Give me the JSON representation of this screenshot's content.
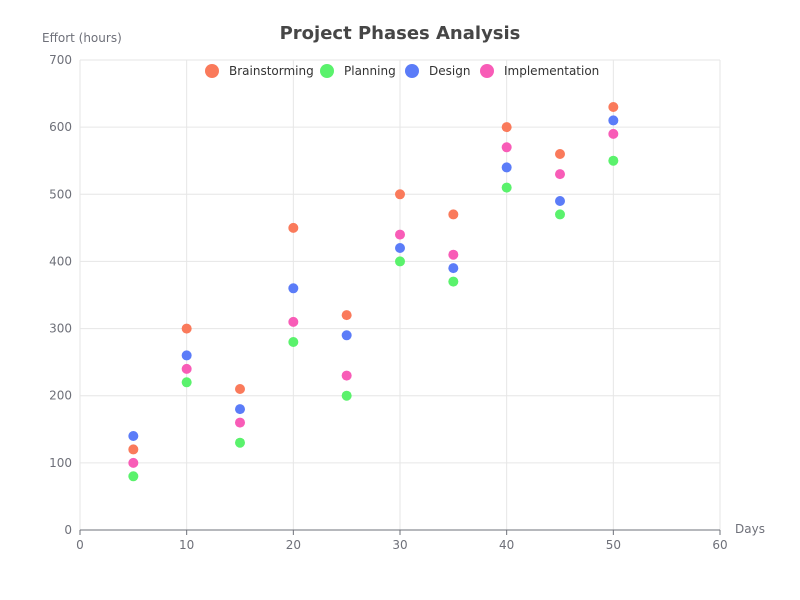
{
  "chart_data": {
    "type": "scatter",
    "title": "Project Phases Analysis",
    "xlabel": "Days",
    "ylabel": "Effort (hours)",
    "xlim": [
      0,
      60
    ],
    "ylim": [
      0,
      700
    ],
    "x_ticks": [
      0,
      10,
      20,
      30,
      40,
      50,
      60
    ],
    "y_ticks": [
      0,
      100,
      200,
      300,
      400,
      500,
      600,
      700
    ],
    "grid": true,
    "legend_position": "top-center",
    "series": [
      {
        "name": "Brainstorming",
        "color": "#fa7a5b",
        "points": [
          [
            5,
            120
          ],
          [
            10,
            300
          ],
          [
            15,
            210
          ],
          [
            20,
            450
          ],
          [
            25,
            320
          ],
          [
            30,
            500
          ],
          [
            35,
            470
          ],
          [
            40,
            600
          ],
          [
            45,
            560
          ],
          [
            50,
            630
          ]
        ]
      },
      {
        "name": "Planning",
        "color": "#5af26c",
        "points": [
          [
            5,
            80
          ],
          [
            10,
            220
          ],
          [
            15,
            130
          ],
          [
            20,
            280
          ],
          [
            25,
            200
          ],
          [
            30,
            400
          ],
          [
            35,
            370
          ],
          [
            40,
            510
          ],
          [
            45,
            470
          ],
          [
            50,
            550
          ]
        ]
      },
      {
        "name": "Design",
        "color": "#5b7cf8",
        "points": [
          [
            5,
            140
          ],
          [
            10,
            260
          ],
          [
            15,
            180
          ],
          [
            20,
            360
          ],
          [
            25,
            290
          ],
          [
            30,
            420
          ],
          [
            35,
            390
          ],
          [
            40,
            540
          ],
          [
            45,
            490
          ],
          [
            50,
            610
          ]
        ]
      },
      {
        "name": "Implementation",
        "color": "#f85cb7",
        "points": [
          [
            5,
            100
          ],
          [
            10,
            240
          ],
          [
            15,
            160
          ],
          [
            20,
            310
          ],
          [
            25,
            230
          ],
          [
            30,
            440
          ],
          [
            35,
            410
          ],
          [
            40,
            570
          ],
          [
            45,
            530
          ],
          [
            50,
            590
          ]
        ]
      }
    ]
  }
}
